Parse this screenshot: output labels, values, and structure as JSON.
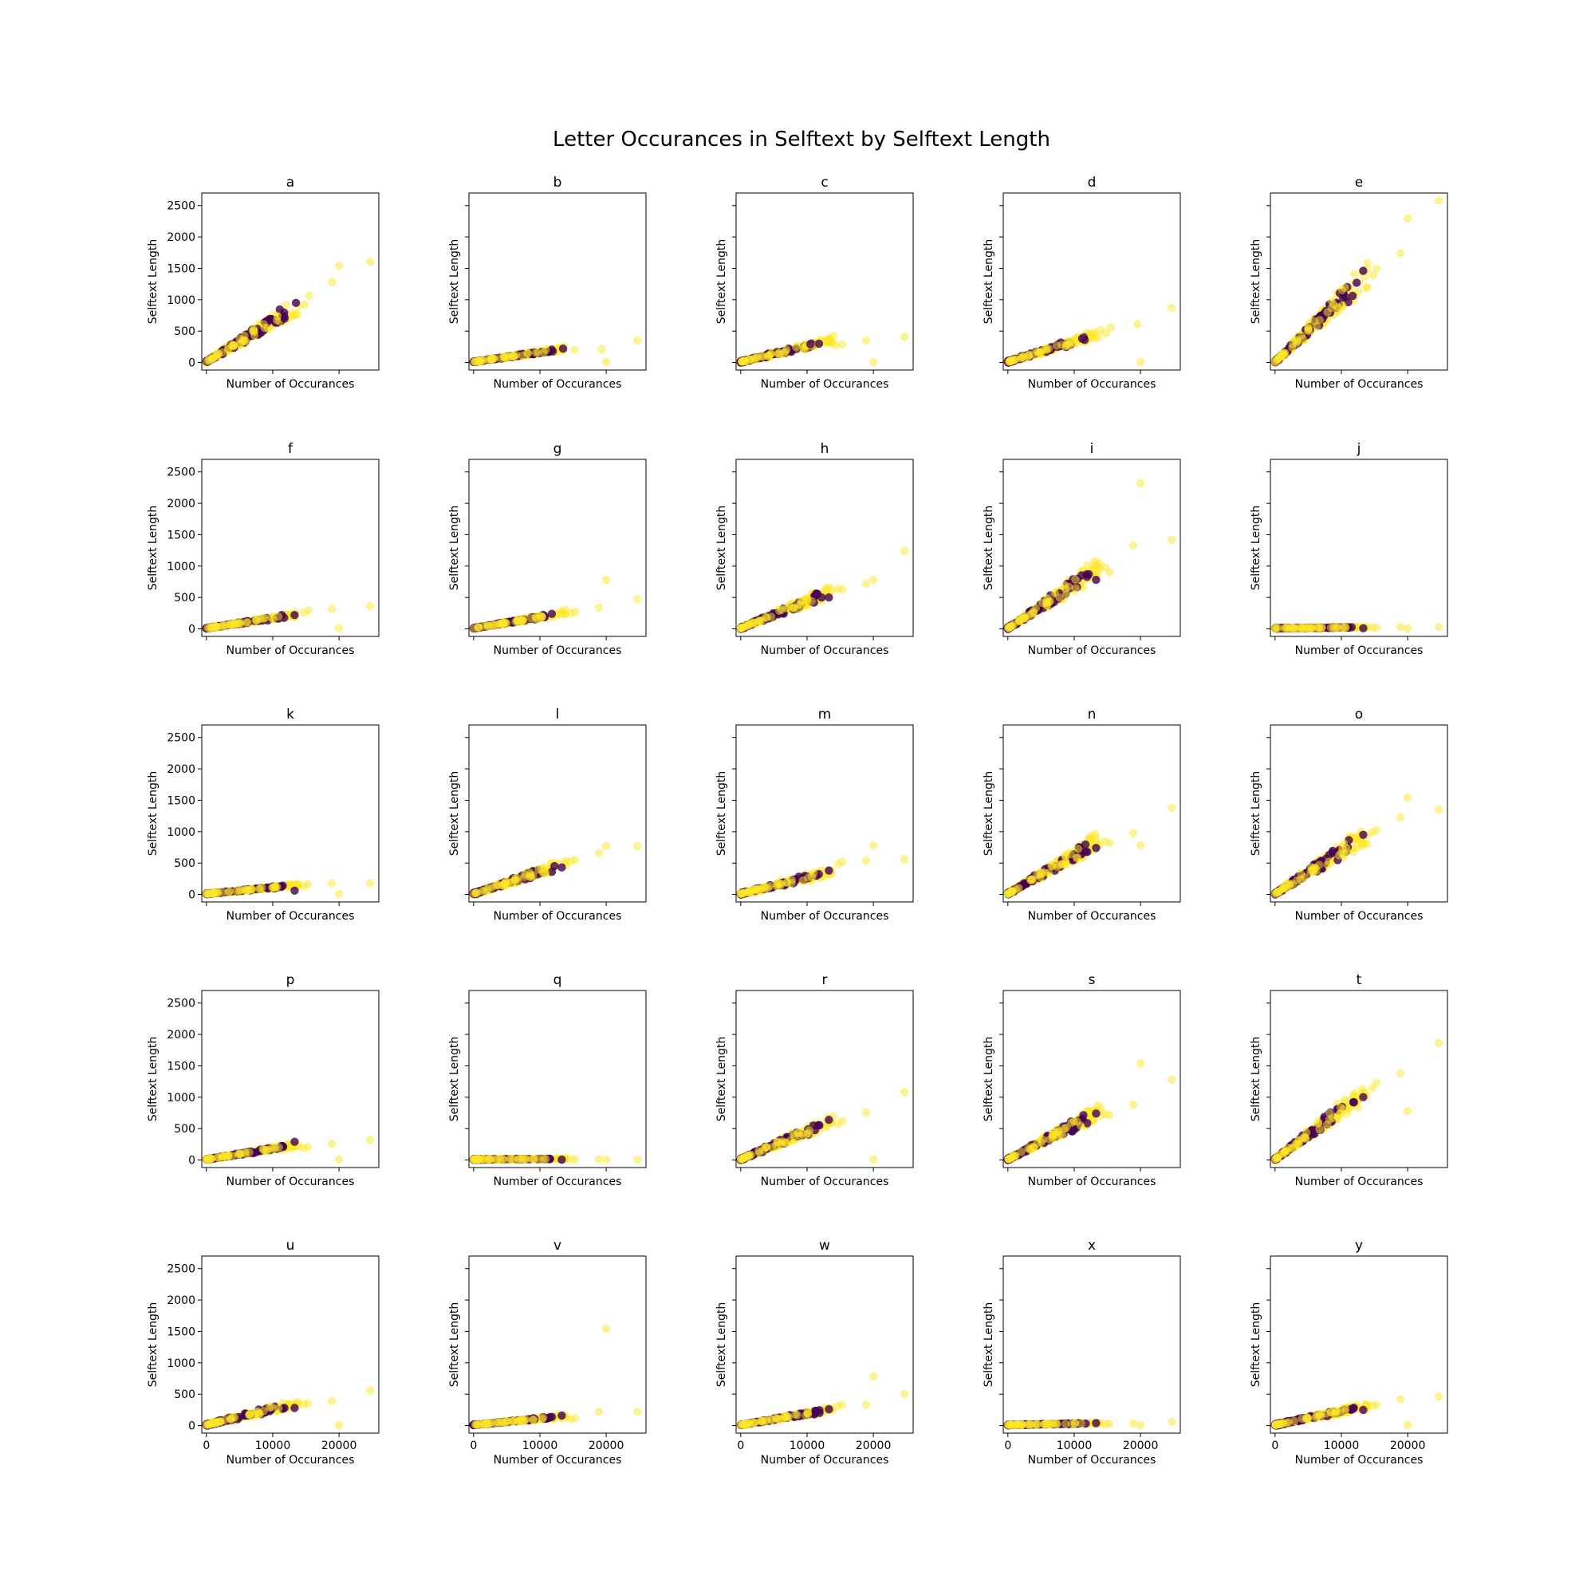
{
  "chart_data": {
    "type": "scatter",
    "title": "Letter Occurances in Selftext by Selftext Length",
    "xlabel": "Number of Occurances",
    "ylabel": "Selftext Length",
    "xlim": [
      -700,
      26000
    ],
    "ylim": [
      -120,
      2700
    ],
    "xticks": [
      0,
      10000,
      20000
    ],
    "xtick_labels": [
      "0",
      "10000",
      "20000"
    ],
    "yticks": [
      0,
      500,
      1000,
      1500,
      2000,
      2500
    ],
    "ytick_labels": [
      "0",
      "500",
      "1000",
      "1500",
      "2000",
      "2500"
    ],
    "sharex": true,
    "sharey": true,
    "grid": false,
    "colors": {
      "class_0": "#440154",
      "class_1": "#fde725"
    },
    "panels": [
      {
        "letter": "a",
        "slope": 0.065,
        "outliers_yellow": [
          [
            24700,
            1600
          ],
          [
            20000,
            1540
          ],
          [
            19000,
            1280
          ],
          [
            15500,
            1060
          ],
          [
            14800,
            920
          ]
        ],
        "outliers_purple": [
          [
            13500,
            950
          ],
          [
            11800,
            700
          ]
        ]
      },
      {
        "letter": "b",
        "slope": 0.0155,
        "outliers_yellow": [
          [
            24700,
            350
          ],
          [
            19300,
            210
          ],
          [
            20000,
            10
          ],
          [
            15200,
            200
          ]
        ],
        "outliers_purple": [
          [
            13500,
            220
          ]
        ]
      },
      {
        "letter": "c",
        "slope": 0.025,
        "outliers_yellow": [
          [
            24700,
            410
          ],
          [
            18900,
            350
          ],
          [
            20000,
            10
          ],
          [
            15300,
            290
          ],
          [
            14300,
            270
          ]
        ],
        "outliers_purple": [
          [
            11800,
            300
          ],
          [
            10500,
            290
          ]
        ]
      },
      {
        "letter": "d",
        "slope": 0.033,
        "outliers_yellow": [
          [
            24700,
            870
          ],
          [
            20000,
            10
          ],
          [
            19500,
            610
          ],
          [
            15500,
            560
          ],
          [
            14800,
            470
          ]
        ],
        "outliers_purple": [
          [
            11200,
            380
          ]
        ]
      },
      {
        "letter": "e",
        "slope": 0.1,
        "outliers_yellow": [
          [
            24700,
            2580
          ],
          [
            20000,
            2300
          ],
          [
            18900,
            1740
          ],
          [
            15300,
            1490
          ],
          [
            14800,
            1390
          ]
        ],
        "outliers_purple": [
          [
            13300,
            1460
          ],
          [
            12300,
            1270
          ]
        ]
      },
      {
        "letter": "f",
        "slope": 0.016,
        "outliers_yellow": [
          [
            24700,
            360
          ],
          [
            20000,
            10
          ],
          [
            18900,
            320
          ],
          [
            15400,
            290
          ],
          [
            14700,
            260
          ]
        ],
        "outliers_purple": [
          [
            13300,
            220
          ]
        ]
      },
      {
        "letter": "g",
        "slope": 0.018,
        "outliers_yellow": [
          [
            24700,
            470
          ],
          [
            20000,
            780
          ],
          [
            18900,
            340
          ],
          [
            15300,
            270
          ],
          [
            14700,
            250
          ]
        ],
        "outliers_purple": [
          [
            11800,
            240
          ]
        ]
      },
      {
        "letter": "h",
        "slope": 0.043,
        "outliers_yellow": [
          [
            24700,
            1240
          ],
          [
            20000,
            780
          ],
          [
            18900,
            720
          ],
          [
            15300,
            630
          ],
          [
            14700,
            640
          ]
        ],
        "outliers_purple": [
          [
            13300,
            500
          ],
          [
            12200,
            500
          ]
        ]
      },
      {
        "letter": "i",
        "slope": 0.07,
        "outliers_yellow": [
          [
            24700,
            1420
          ],
          [
            20000,
            2320
          ],
          [
            18900,
            1330
          ],
          [
            15300,
            900
          ],
          [
            14700,
            980
          ]
        ],
        "outliers_purple": [
          [
            13300,
            780
          ],
          [
            12200,
            870
          ]
        ]
      },
      {
        "letter": "j",
        "slope": 0.0012,
        "outliers_yellow": [
          [
            24700,
            30
          ],
          [
            20000,
            10
          ],
          [
            18900,
            30
          ],
          [
            15300,
            20
          ],
          [
            14700,
            20
          ]
        ],
        "outliers_purple": [
          [
            13300,
            10
          ]
        ]
      },
      {
        "letter": "k",
        "slope": 0.01,
        "outliers_yellow": [
          [
            24700,
            180
          ],
          [
            20000,
            10
          ],
          [
            18900,
            180
          ],
          [
            15300,
            160
          ],
          [
            14700,
            130
          ]
        ],
        "outliers_purple": [
          [
            13300,
            60
          ]
        ]
      },
      {
        "letter": "l",
        "slope": 0.035,
        "outliers_yellow": [
          [
            24700,
            770
          ],
          [
            20000,
            770
          ],
          [
            18900,
            660
          ],
          [
            15300,
            550
          ],
          [
            14700,
            530
          ]
        ],
        "outliers_purple": [
          [
            13300,
            430
          ],
          [
            12200,
            450
          ]
        ]
      },
      {
        "letter": "m",
        "slope": 0.026,
        "outliers_yellow": [
          [
            24700,
            560
          ],
          [
            20000,
            780
          ],
          [
            18900,
            540
          ],
          [
            15300,
            520
          ],
          [
            14700,
            480
          ]
        ],
        "outliers_purple": [
          [
            13300,
            380
          ]
        ]
      },
      {
        "letter": "n",
        "slope": 0.062,
        "outliers_yellow": [
          [
            24700,
            1380
          ],
          [
            20000,
            780
          ],
          [
            18900,
            980
          ],
          [
            15300,
            820
          ],
          [
            14700,
            850
          ]
        ],
        "outliers_purple": [
          [
            13300,
            740
          ]
        ]
      },
      {
        "letter": "o",
        "slope": 0.068,
        "outliers_yellow": [
          [
            24700,
            1350
          ],
          [
            20000,
            1540
          ],
          [
            18900,
            1230
          ],
          [
            15300,
            1020
          ],
          [
            14700,
            990
          ]
        ],
        "outliers_purple": [
          [
            13300,
            950
          ]
        ]
      },
      {
        "letter": "p",
        "slope": 0.017,
        "outliers_yellow": [
          [
            24700,
            320
          ],
          [
            20000,
            10
          ],
          [
            18900,
            260
          ],
          [
            15300,
            210
          ],
          [
            14700,
            190
          ]
        ],
        "outliers_purple": [
          [
            13300,
            290
          ]
        ]
      },
      {
        "letter": "q",
        "slope": 0.0007,
        "outliers_yellow": [
          [
            24700,
            10
          ],
          [
            20000,
            10
          ],
          [
            18900,
            10
          ],
          [
            15300,
            10
          ],
          [
            14700,
            10
          ]
        ],
        "outliers_purple": [
          [
            13300,
            5
          ]
        ]
      },
      {
        "letter": "r",
        "slope": 0.045,
        "outliers_yellow": [
          [
            24700,
            1080
          ],
          [
            20000,
            10
          ],
          [
            18900,
            760
          ],
          [
            15300,
            620
          ],
          [
            14700,
            570
          ]
        ],
        "outliers_purple": [
          [
            13300,
            640
          ]
        ]
      },
      {
        "letter": "s",
        "slope": 0.055,
        "outliers_yellow": [
          [
            24700,
            1280
          ],
          [
            20000,
            1540
          ],
          [
            18900,
            880
          ],
          [
            15300,
            720
          ],
          [
            14700,
            730
          ]
        ],
        "outliers_purple": [
          [
            13300,
            740
          ]
        ]
      },
      {
        "letter": "t",
        "slope": 0.08,
        "outliers_yellow": [
          [
            24700,
            1860
          ],
          [
            20000,
            780
          ],
          [
            18900,
            1380
          ],
          [
            15300,
            1230
          ],
          [
            14700,
            1150
          ]
        ],
        "outliers_purple": [
          [
            13300,
            1000
          ],
          [
            11800,
            920
          ]
        ]
      },
      {
        "letter": "u",
        "slope": 0.026,
        "outliers_yellow": [
          [
            24700,
            560
          ],
          [
            20000,
            10
          ],
          [
            18900,
            390
          ],
          [
            15300,
            350
          ],
          [
            14700,
            340
          ]
        ],
        "outliers_purple": [
          [
            13300,
            280
          ]
        ]
      },
      {
        "letter": "v",
        "slope": 0.01,
        "outliers_yellow": [
          [
            24700,
            220
          ],
          [
            20000,
            1540
          ],
          [
            18900,
            220
          ],
          [
            15300,
            120
          ],
          [
            14700,
            100
          ]
        ],
        "outliers_purple": [
          [
            13300,
            160
          ]
        ]
      },
      {
        "letter": "w",
        "slope": 0.018,
        "outliers_yellow": [
          [
            24700,
            500
          ],
          [
            20000,
            780
          ],
          [
            18900,
            330
          ],
          [
            15300,
            330
          ],
          [
            14700,
            310
          ]
        ],
        "outliers_purple": [
          [
            13300,
            260
          ]
        ]
      },
      {
        "letter": "x",
        "slope": 0.0022,
        "outliers_yellow": [
          [
            24700,
            60
          ],
          [
            20000,
            10
          ],
          [
            18900,
            30
          ],
          [
            15300,
            30
          ],
          [
            14700,
            20
          ]
        ],
        "outliers_purple": [
          [
            13300,
            40
          ]
        ]
      },
      {
        "letter": "y",
        "slope": 0.022,
        "outliers_yellow": [
          [
            24700,
            460
          ],
          [
            20000,
            10
          ],
          [
            18900,
            420
          ],
          [
            15300,
            330
          ],
          [
            14700,
            320
          ]
        ],
        "outliers_purple": [
          [
            13300,
            250
          ],
          [
            11800,
            270
          ]
        ]
      }
    ]
  }
}
